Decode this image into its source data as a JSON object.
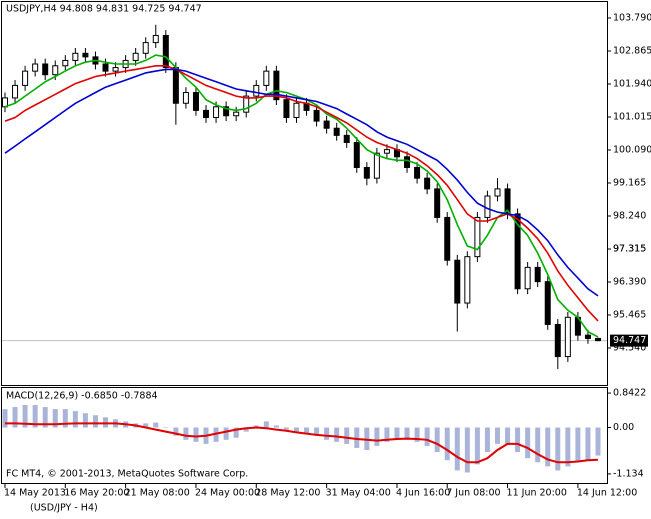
{
  "chart_data": [
    {
      "type": "candlestick",
      "title": "USDJPY,H4  94.808 94.831 94.725 94.747",
      "categories": [
        "14 May 2013",
        null,
        null,
        null,
        null,
        null,
        "16 May 20:00",
        null,
        null,
        null,
        null,
        null,
        "21 May 08:00",
        null,
        null,
        null,
        null,
        null,
        null,
        "24 May 00:00",
        null,
        null,
        null,
        null,
        null,
        "28 May 12:00",
        null,
        null,
        null,
        null,
        null,
        null,
        "31 May 04:00",
        null,
        null,
        null,
        null,
        null,
        null,
        "4 Jun 16:00",
        null,
        null,
        null,
        null,
        "7 Jun 08:00",
        null,
        null,
        null,
        null,
        null,
        "11 Jun 20:00",
        null,
        null,
        null,
        null,
        null,
        null,
        "14 Jun 12:00",
        null,
        null
      ],
      "open": [
        101.3,
        101.55,
        101.9,
        102.3,
        102.5,
        102.2,
        102.45,
        102.6,
        102.8,
        102.7,
        102.5,
        102.3,
        102.4,
        102.6,
        102.8,
        103.1,
        103.3,
        102.4,
        101.4,
        101.7,
        101.2,
        101.0,
        101.3,
        101.05,
        101.15,
        101.6,
        101.9,
        102.3,
        101.5,
        101.0,
        101.4,
        101.2,
        100.9,
        100.7,
        100.5,
        100.3,
        99.6,
        99.3,
        100.0,
        100.1,
        99.9,
        99.6,
        99.3,
        99.0,
        98.2,
        97.0,
        95.8,
        97.1,
        98.2,
        98.8,
        99.0,
        98.3,
        96.2,
        96.8,
        96.4,
        95.2,
        94.3,
        95.4,
        94.9,
        94.808
      ],
      "high": [
        101.7,
        102.05,
        102.45,
        102.65,
        102.65,
        102.6,
        102.75,
        102.95,
        102.95,
        102.85,
        102.65,
        102.55,
        102.75,
        102.95,
        103.25,
        103.6,
        103.45,
        102.55,
        101.85,
        101.85,
        101.35,
        101.45,
        101.45,
        101.3,
        101.75,
        102.05,
        102.45,
        102.45,
        101.65,
        101.55,
        101.55,
        101.35,
        101.05,
        100.85,
        100.65,
        100.45,
        99.75,
        100.15,
        100.25,
        100.25,
        100.05,
        99.75,
        99.45,
        99.15,
        98.35,
        97.15,
        97.25,
        98.35,
        98.95,
        99.3,
        99.15,
        98.45,
        96.95,
        96.95,
        96.55,
        95.35,
        95.55,
        95.55,
        95.05,
        94.831
      ],
      "low": [
        101.15,
        101.4,
        101.75,
        102.15,
        102.05,
        102.05,
        102.3,
        102.45,
        102.55,
        102.35,
        102.15,
        102.15,
        102.25,
        102.45,
        102.65,
        102.95,
        102.25,
        100.8,
        101.25,
        101.05,
        100.85,
        100.85,
        100.9,
        100.9,
        101.0,
        101.45,
        101.75,
        101.35,
        100.85,
        100.85,
        101.05,
        100.75,
        100.55,
        100.35,
        100.15,
        99.45,
        99.1,
        99.15,
        99.85,
        99.75,
        99.45,
        99.15,
        98.85,
        98.05,
        96.85,
        95.0,
        95.65,
        96.95,
        98.05,
        98.65,
        98.15,
        96.05,
        96.05,
        96.25,
        95.05,
        93.95,
        94.15,
        94.75,
        94.658,
        94.725
      ],
      "close": [
        101.55,
        101.9,
        102.3,
        102.5,
        102.2,
        102.45,
        102.6,
        102.8,
        102.7,
        102.5,
        102.3,
        102.4,
        102.6,
        102.8,
        103.1,
        103.3,
        102.4,
        101.4,
        101.7,
        101.2,
        101.0,
        101.3,
        101.05,
        101.15,
        101.6,
        101.9,
        102.3,
        101.5,
        101.0,
        101.4,
        101.2,
        100.9,
        100.7,
        100.5,
        100.3,
        99.6,
        99.3,
        100.0,
        100.1,
        99.9,
        99.6,
        99.3,
        99.0,
        98.2,
        97.0,
        95.8,
        97.1,
        98.2,
        98.8,
        99.0,
        98.3,
        96.2,
        96.8,
        96.4,
        95.2,
        94.3,
        95.4,
        94.9,
        94.808,
        94.747
      ],
      "series": [
        {
          "color": "#00b000",
          "values": [
            101.3,
            101.4,
            101.6,
            101.8,
            102.0,
            102.15,
            102.3,
            102.45,
            102.55,
            102.6,
            102.55,
            102.5,
            102.5,
            102.5,
            102.6,
            102.75,
            102.7,
            102.4,
            102.1,
            101.85,
            101.5,
            101.35,
            101.25,
            101.2,
            101.25,
            101.4,
            101.65,
            101.75,
            101.7,
            101.6,
            101.5,
            101.35,
            101.1,
            100.95,
            100.7,
            100.4,
            100.1,
            99.95,
            99.85,
            99.8,
            99.8,
            99.7,
            99.5,
            99.2,
            98.7,
            98.0,
            97.4,
            97.3,
            97.7,
            98.2,
            98.4,
            98.0,
            97.7,
            97.2,
            96.6,
            95.9,
            95.6,
            95.4,
            95.0,
            94.85
          ]
        },
        {
          "color": "#e00000",
          "values": [
            100.9,
            101.0,
            101.2,
            101.35,
            101.5,
            101.65,
            101.8,
            101.95,
            102.05,
            102.15,
            102.2,
            102.25,
            102.3,
            102.35,
            102.4,
            102.45,
            102.45,
            102.35,
            102.2,
            102.05,
            101.9,
            101.8,
            101.7,
            101.6,
            101.55,
            101.55,
            101.6,
            101.6,
            101.55,
            101.45,
            101.4,
            101.3,
            101.15,
            101.0,
            100.85,
            100.65,
            100.45,
            100.3,
            100.2,
            100.1,
            100.0,
            99.85,
            99.65,
            99.4,
            99.1,
            98.7,
            98.3,
            98.1,
            98.1,
            98.2,
            98.3,
            98.15,
            97.9,
            97.6,
            97.2,
            96.7,
            96.3,
            95.95,
            95.6,
            95.3
          ]
        },
        {
          "color": "#0000d0",
          "values": [
            100.0,
            100.2,
            100.4,
            100.6,
            100.8,
            101.0,
            101.2,
            101.4,
            101.55,
            101.7,
            101.85,
            101.95,
            102.05,
            102.15,
            102.25,
            102.3,
            102.35,
            102.35,
            102.3,
            102.2,
            102.1,
            102.0,
            101.9,
            101.8,
            101.75,
            101.7,
            101.65,
            101.65,
            101.6,
            101.55,
            101.5,
            101.45,
            101.35,
            101.25,
            101.1,
            100.95,
            100.8,
            100.6,
            100.45,
            100.35,
            100.25,
            100.1,
            99.95,
            99.8,
            99.55,
            99.25,
            98.9,
            98.6,
            98.45,
            98.35,
            98.3,
            98.25,
            98.1,
            97.85,
            97.55,
            97.15,
            96.8,
            96.5,
            96.2,
            96.0
          ]
        }
      ],
      "last_price": 94.747,
      "ylim": [
        93.503,
        104.238
      ],
      "yticks": [
        {
          "value": 103.79,
          "label": "103.790"
        },
        102.865,
        {
          "value": 101.94,
          "label": "101.940"
        },
        101.015,
        {
          "value": 100.09,
          "label": "100.090"
        },
        99.165,
        {
          "value": 98.24,
          "label": "98.240"
        },
        97.315,
        {
          "value": 96.39,
          "label": "96.390"
        },
        95.465,
        {
          "value": 94.54,
          "label": "94.540"
        },
        97.315
      ]
    },
    {
      "type": "macd",
      "title": "MACD(12,26,9) -0.6850 -0.7884",
      "annotation": "FC MT4, © 2001-2013, MetaQuotes Software Corp.",
      "histogram": {
        "color": "#aab4d8",
        "values": [
          0.45,
          0.5,
          0.55,
          0.55,
          0.5,
          0.45,
          0.45,
          0.4,
          0.35,
          0.3,
          0.25,
          0.2,
          0.15,
          0.1,
          0.1,
          0.12,
          0.0,
          -0.2,
          -0.3,
          -0.35,
          -0.4,
          -0.35,
          -0.3,
          -0.25,
          -0.1,
          0.05,
          0.15,
          0.05,
          -0.05,
          -0.1,
          -0.15,
          -0.2,
          -0.3,
          -0.35,
          -0.4,
          -0.5,
          -0.55,
          -0.45,
          -0.35,
          -0.3,
          -0.3,
          -0.35,
          -0.45,
          -0.6,
          -0.8,
          -1.05,
          -1.1,
          -0.9,
          -0.6,
          -0.4,
          -0.4,
          -0.6,
          -0.75,
          -0.85,
          -0.95,
          -1.05,
          -0.95,
          -0.85,
          -0.8,
          -0.685
        ]
      },
      "signal": {
        "color": "#e00000",
        "values": [
          0.1,
          0.1,
          0.09,
          0.08,
          0.08,
          0.08,
          0.09,
          0.1,
          0.1,
          0.1,
          0.1,
          0.1,
          0.08,
          0.05,
          0.0,
          -0.05,
          -0.1,
          -0.15,
          -0.2,
          -0.22,
          -0.2,
          -0.15,
          -0.1,
          -0.05,
          -0.02,
          0.0,
          -0.02,
          -0.05,
          -0.08,
          -0.12,
          -0.15,
          -0.18,
          -0.2,
          -0.22,
          -0.25,
          -0.28,
          -0.3,
          -0.32,
          -0.3,
          -0.28,
          -0.27,
          -0.28,
          -0.3,
          -0.4,
          -0.55,
          -0.72,
          -0.85,
          -0.85,
          -0.75,
          -0.55,
          -0.4,
          -0.4,
          -0.5,
          -0.65,
          -0.78,
          -0.85,
          -0.85,
          -0.83,
          -0.8,
          -0.7884
        ]
      },
      "ylim": [
        -1.381,
        0.966
      ],
      "yticks": [
        0.8422,
        {
          "value": 0,
          "label": "0.00"
        },
        -1.134
      ]
    }
  ],
  "footer": "(USD/JPY - H4)"
}
